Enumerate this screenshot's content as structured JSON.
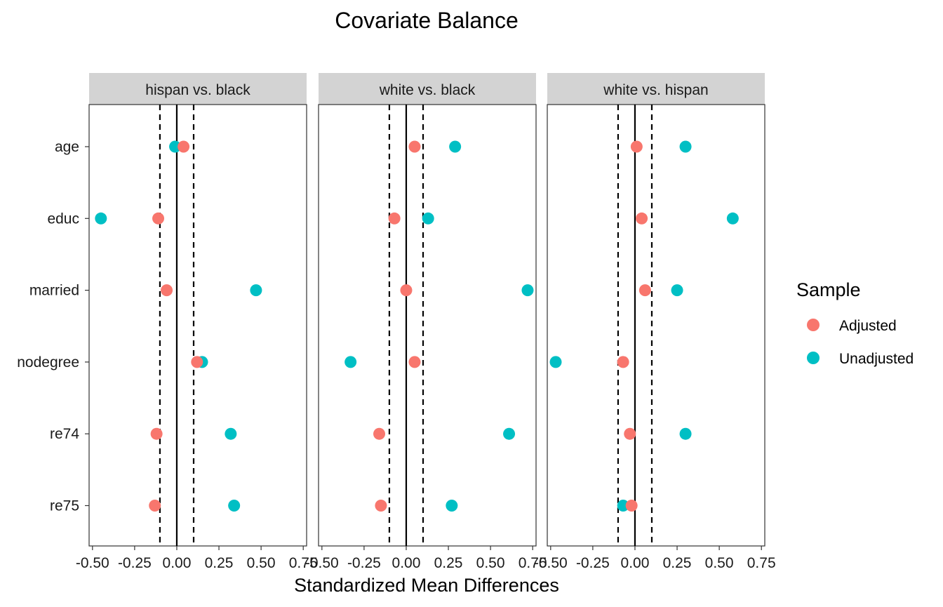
{
  "chart_data": {
    "type": "scatter",
    "title": "Covariate Balance",
    "xlabel": "Standardized Mean Differences",
    "ylabel": "",
    "xlim": [
      -0.52,
      0.77
    ],
    "x_ticks": [
      -0.5,
      -0.25,
      0,
      0.25,
      0.5,
      0.75
    ],
    "x_tick_labels": [
      "-0.50",
      "-0.25",
      "0.00",
      "0.25",
      "0.50",
      "0.75"
    ],
    "reference_lines": {
      "solid": 0,
      "dashed": [
        -0.1,
        0.1
      ]
    },
    "grid": false,
    "categories": [
      "age",
      "educ",
      "married",
      "nodegree",
      "re74",
      "re75"
    ],
    "legend": {
      "title": "Sample",
      "placement": "right",
      "entries": [
        {
          "name": "Adjusted",
          "color": "#F8766D"
        },
        {
          "name": "Unadjusted",
          "color": "#00BFC4"
        }
      ]
    },
    "panels": [
      {
        "label": "hispan vs. black",
        "series": [
          {
            "name": "Unadjusted",
            "color": "#00BFC4",
            "values": [
              -0.01,
              -0.45,
              0.47,
              0.15,
              0.32,
              0.34
            ]
          },
          {
            "name": "Adjusted",
            "color": "#F8766D",
            "values": [
              0.04,
              -0.11,
              -0.06,
              0.12,
              -0.12,
              -0.13
            ]
          }
        ]
      },
      {
        "label": "white vs. black",
        "series": [
          {
            "name": "Unadjusted",
            "color": "#00BFC4",
            "values": [
              0.29,
              0.13,
              0.72,
              -0.33,
              0.61,
              0.27
            ]
          },
          {
            "name": "Adjusted",
            "color": "#F8766D",
            "values": [
              0.05,
              -0.07,
              0.0,
              0.05,
              -0.16,
              -0.15
            ]
          }
        ]
      },
      {
        "label": "white vs. hispan",
        "series": [
          {
            "name": "Unadjusted",
            "color": "#00BFC4",
            "values": [
              0.3,
              0.58,
              0.25,
              -0.47,
              0.3,
              -0.07
            ]
          },
          {
            "name": "Adjusted",
            "color": "#F8766D",
            "values": [
              0.01,
              0.04,
              0.06,
              -0.07,
              -0.03,
              -0.02
            ]
          }
        ]
      }
    ]
  }
}
